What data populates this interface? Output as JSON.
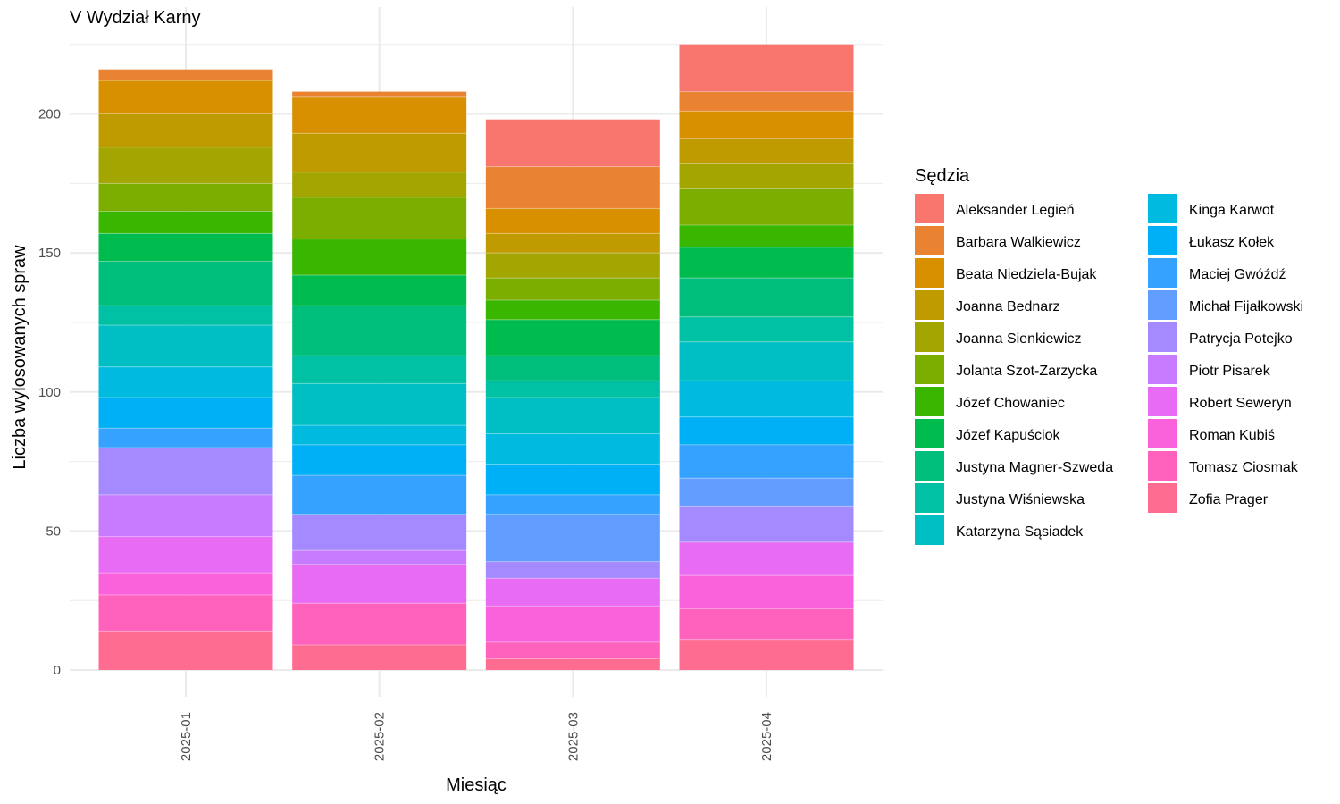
{
  "chart_data": {
    "type": "bar",
    "stacked": true,
    "title": "V Wydział Karny",
    "xlabel": "Miesiąc",
    "ylabel": "Liczba wylosowanych spraw",
    "ylim": [
      0,
      230
    ],
    "yticks": [
      0,
      50,
      100,
      150,
      200
    ],
    "grid": true,
    "legend_position": "right",
    "legend_title": "Sędzia",
    "categories": [
      "2025-01",
      "2025-02",
      "2025-03",
      "2025-04"
    ],
    "series": [
      {
        "name": "Aleksander Legień",
        "color": "#F8766D",
        "values": [
          0,
          0,
          17,
          17
        ]
      },
      {
        "name": "Barbara Walkiewicz",
        "color": "#EA8331",
        "values": [
          4,
          2,
          15,
          7
        ]
      },
      {
        "name": "Beata Niedziela-Bujak",
        "color": "#D89000",
        "values": [
          12,
          13,
          9,
          10
        ]
      },
      {
        "name": "Joanna Bednarz",
        "color": "#C09B00",
        "values": [
          12,
          14,
          7,
          9
        ]
      },
      {
        "name": "Joanna Sienkiewicz",
        "color": "#A3A500",
        "values": [
          13,
          9,
          9,
          9
        ]
      },
      {
        "name": "Jolanta Szot-Zarzycka",
        "color": "#7CAE00",
        "values": [
          10,
          15,
          8,
          13
        ]
      },
      {
        "name": "Józef Chowaniec",
        "color": "#39B600",
        "values": [
          8,
          13,
          7,
          8
        ]
      },
      {
        "name": "Józef Kapuściok",
        "color": "#00BB4E",
        "values": [
          10,
          11,
          13,
          11
        ]
      },
      {
        "name": "Justyna Magner-Szweda",
        "color": "#00BF7D",
        "values": [
          16,
          18,
          9,
          14
        ]
      },
      {
        "name": "Justyna Wiśniewska",
        "color": "#00C1A3",
        "values": [
          7,
          10,
          6,
          9
        ]
      },
      {
        "name": "Katarzyna Sąsiadek",
        "color": "#00BFC4",
        "values": [
          15,
          15,
          13,
          14
        ]
      },
      {
        "name": "Kinga Karwot",
        "color": "#00BAE0",
        "values": [
          11,
          7,
          11,
          13
        ]
      },
      {
        "name": "Łukasz Kołek",
        "color": "#00B0F6",
        "values": [
          11,
          11,
          11,
          10
        ]
      },
      {
        "name": "Maciej Gwóźdź",
        "color": "#35A2FF",
        "values": [
          7,
          14,
          7,
          12
        ]
      },
      {
        "name": "Michał Fijałkowski",
        "color": "#619CFF",
        "values": [
          0,
          0,
          17,
          10
        ]
      },
      {
        "name": "Patrycja Potejko",
        "color": "#A58AFF",
        "values": [
          17,
          13,
          6,
          13
        ]
      },
      {
        "name": "Piotr Pisarek",
        "color": "#C77CFF",
        "values": [
          15,
          5,
          0,
          0
        ]
      },
      {
        "name": "Robert Seweryn",
        "color": "#E76BF3",
        "values": [
          13,
          14,
          10,
          12
        ]
      },
      {
        "name": "Roman Kubiś",
        "color": "#FA62DB",
        "values": [
          8,
          0,
          13,
          12
        ]
      },
      {
        "name": "Tomasz Ciosmak",
        "color": "#FF62BC",
        "values": [
          13,
          15,
          6,
          11
        ]
      },
      {
        "name": "Zofia Prager",
        "color": "#FF6C91",
        "values": [
          14,
          9,
          4,
          11
        ]
      }
    ]
  }
}
